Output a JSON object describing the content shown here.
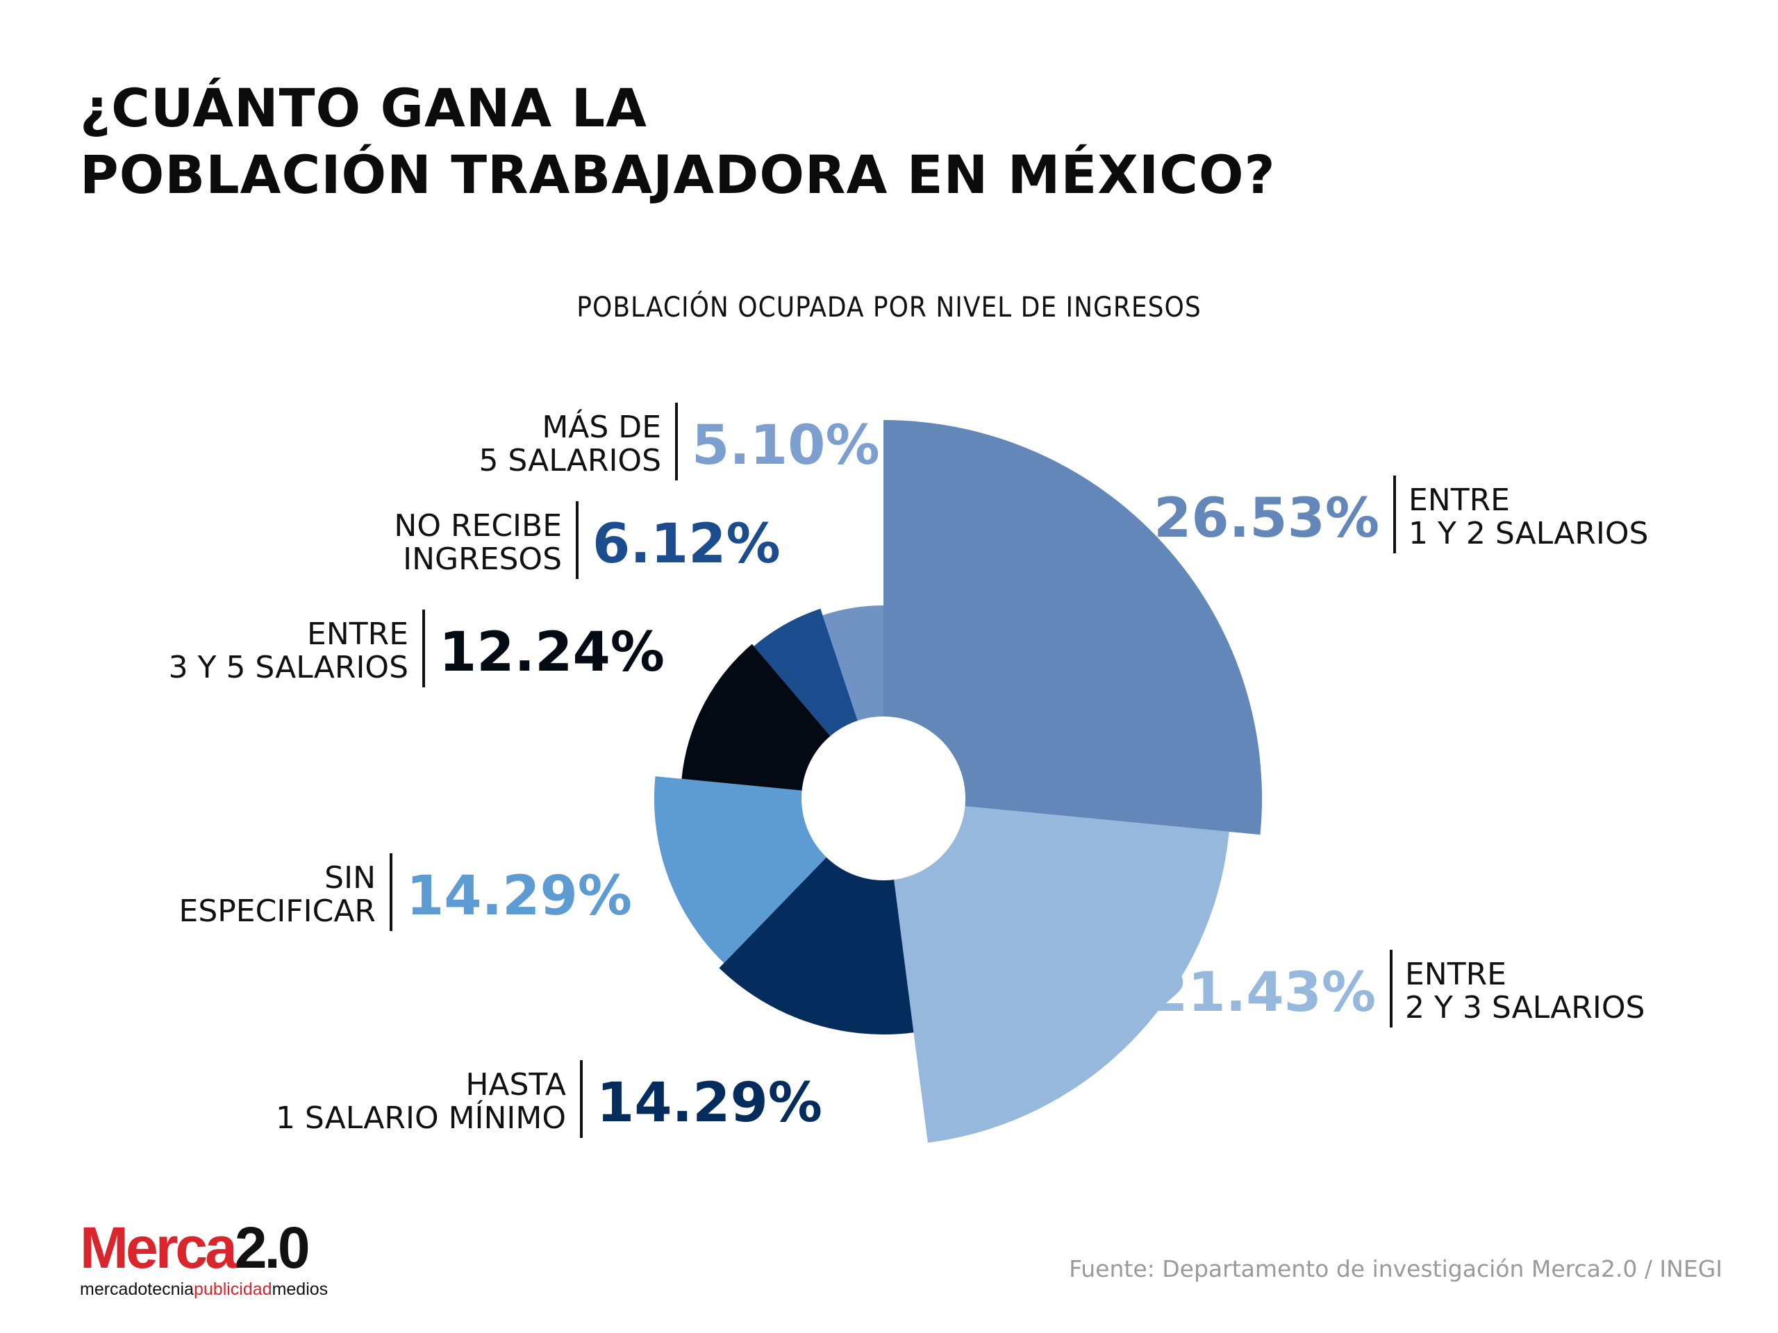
{
  "header": {
    "title_line1": "¿CUÁNTO GANA LA",
    "title_line2": "POBLACIÓN TRABAJADORA EN MÉXICO?"
  },
  "chart_data": {
    "type": "pie",
    "variant": "polar area with center hole",
    "title": "POBLACIÓN OCUPADA POR NIVEL DE INGRESOS",
    "slices": [
      {
        "label": "ENTRE 1 Y 2 SALARIOS",
        "label_lines": [
          "ENTRE",
          "1 Y 2 SALARIOS"
        ],
        "value": 26.53,
        "value_text": "26.53%",
        "color": "#6387b9",
        "value_color": "#6387b9"
      },
      {
        "label": "ENTRE 2 Y 3 SALARIOS",
        "label_lines": [
          "ENTRE",
          "2 Y 3 SALARIOS"
        ],
        "value": 21.43,
        "value_text": "21.43%",
        "color": "#95b8dc",
        "value_color": "#95b8dc"
      },
      {
        "label": "HASTA 1 SALARIO MÍNIMO",
        "label_lines": [
          "HASTA",
          "1 SALARIO MÍNIMO"
        ],
        "value": 14.29,
        "value_text": "14.29%",
        "color": "#042d5e",
        "value_color": "#042d5e"
      },
      {
        "label": "SIN ESPECIFICAR",
        "label_lines": [
          "SIN",
          "ESPECIFICAR"
        ],
        "value": 14.29,
        "value_text": "14.29%",
        "color": "#5d9bd3",
        "value_color": "#5d9bd3"
      },
      {
        "label": "ENTRE 3 Y 5 SALARIOS",
        "label_lines": [
          "ENTRE",
          "3 Y 5 SALARIOS"
        ],
        "value": 12.24,
        "value_text": "12.24%",
        "color": "#030a14",
        "value_color": "#030a14"
      },
      {
        "label": "NO RECIBE INGRESOS",
        "label_lines": [
          "NO RECIBE",
          "INGRESOS"
        ],
        "value": 6.12,
        "value_text": "6.12%",
        "color": "#1b4c8d",
        "value_color": "#1b4c8d"
      },
      {
        "label": "MÁS DE 5 SALARIOS",
        "label_lines": [
          "MÁS DE",
          "5 SALARIOS"
        ],
        "value": 5.1,
        "value_text": "5.10%",
        "color": "#7093c4",
        "value_color": "#7c9fcf"
      }
    ]
  },
  "footer": {
    "logo_main": "Merca",
    "logo_version": "2.0",
    "logo_tag_1": "mercadotecnia",
    "logo_tag_2": "publicidad",
    "logo_tag_3": "medios",
    "source": "Fuente: Departamento de investigación Merca2.0 / INEGI"
  }
}
